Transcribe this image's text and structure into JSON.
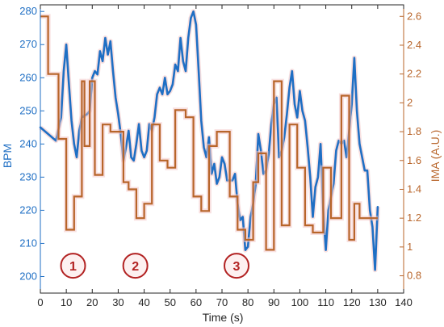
{
  "chart_data": {
    "type": "line",
    "xlabel": "Time (s)",
    "ylabel_left": "BPM",
    "ylabel_right": "IMA (A.U.)",
    "xlim": [
      0,
      140
    ],
    "xticks": [
      0,
      10,
      20,
      30,
      40,
      50,
      60,
      70,
      80,
      90,
      100,
      110,
      120,
      130,
      140
    ],
    "ylim_left": [
      195,
      282
    ],
    "yticks_left": [
      200,
      210,
      220,
      230,
      240,
      250,
      260,
      270,
      280
    ],
    "ylim_right": [
      0.68,
      2.68
    ],
    "yticks_right": [
      0.8,
      1,
      1.2,
      1.4,
      1.6,
      1.8,
      2,
      2.2,
      2.4,
      2.6
    ],
    "colors": {
      "bpm": "#1f6fc4",
      "ima": "#b8652a",
      "marker": "#b22222"
    },
    "series": [
      {
        "axis": "left",
        "style": "line",
        "x": [
          0,
          6,
          8,
          9,
          10,
          11,
          12,
          13,
          14,
          15,
          16,
          18,
          19,
          20,
          21,
          22,
          23,
          24,
          25,
          26,
          27,
          28,
          29,
          30,
          31,
          32,
          33,
          34,
          35,
          36,
          37,
          38,
          39,
          40,
          41,
          42,
          43,
          44,
          45,
          46,
          47,
          48,
          49,
          50,
          51,
          52,
          53,
          54,
          55,
          56,
          57,
          58,
          59,
          60,
          61,
          62,
          63,
          64,
          65,
          66,
          67,
          68,
          69,
          70,
          71,
          72,
          73,
          74,
          75,
          76,
          77,
          78,
          79,
          80,
          81,
          82,
          83,
          84,
          85,
          86,
          87,
          88,
          89,
          90,
          91,
          92,
          93,
          94,
          95,
          96,
          97,
          98,
          99,
          100,
          101,
          102,
          103,
          104,
          105,
          106,
          107,
          108,
          109,
          110,
          111,
          112,
          113,
          114,
          115,
          116,
          117,
          118,
          119,
          120,
          121,
          122,
          123,
          124,
          125,
          126,
          127,
          128,
          129,
          130
        ],
        "y": [
          245,
          241,
          248,
          262,
          270,
          258,
          247,
          240,
          236,
          244,
          248,
          249,
          250,
          260,
          262,
          261,
          268,
          265,
          272,
          267,
          271,
          262,
          254,
          249,
          243,
          235,
          239,
          244,
          236,
          235,
          240,
          246,
          238,
          236,
          238,
          246,
          244,
          248,
          255,
          257,
          255,
          260,
          255,
          256,
          258,
          264,
          262,
          272,
          265,
          262,
          272,
          278,
          280,
          276,
          262,
          247,
          239,
          236,
          242,
          231,
          234,
          228,
          230,
          236,
          234,
          229,
          229,
          229,
          231,
          222,
          217,
          218,
          208,
          209,
          218,
          222,
          228,
          243,
          238,
          231,
          232,
          237,
          246,
          252,
          254,
          236,
          238,
          242,
          249,
          257,
          262,
          252,
          248,
          256,
          250,
          247,
          239,
          230,
          218,
          227,
          230,
          240,
          220,
          208,
          220,
          224,
          228,
          238,
          241,
          240,
          241,
          236,
          244,
          252,
          266,
          250,
          240,
          236,
          232,
          232,
          220,
          215,
          202,
          221
        ]
      },
      {
        "axis": "right",
        "style": "step",
        "x": [
          0,
          3,
          5,
          7,
          10,
          13,
          16,
          17,
          19,
          21,
          24,
          27,
          30,
          32,
          34,
          37,
          40,
          43,
          46,
          49,
          52,
          56,
          59,
          62,
          65,
          68,
          70,
          73,
          76,
          79,
          82,
          84,
          87,
          90,
          93,
          96,
          99,
          102,
          105,
          109,
          112,
          116,
          119,
          121,
          123,
          125,
          127,
          130
        ],
        "y": [
          2.6,
          2.2,
          2.2,
          1.75,
          1.12,
          1.35,
          2.15,
          1.7,
          2.15,
          1.5,
          1.85,
          1.8,
          1.8,
          1.45,
          1.4,
          1.2,
          1.3,
          1.85,
          1.6,
          1.55,
          1.95,
          1.9,
          1.35,
          1.25,
          1.7,
          1.8,
          1.8,
          1.35,
          1.12,
          1.05,
          1.45,
          1.65,
          0.98,
          2.15,
          1.15,
          1.85,
          1.55,
          1.15,
          1.1,
          1.55,
          1.2,
          2.05,
          1.05,
          1.3,
          1.2,
          1.2,
          1.2,
          1.2
        ]
      }
    ],
    "markers": [
      {
        "label": "1",
        "x": 7,
        "y": 204
      },
      {
        "label": "2",
        "x": 31,
        "y": 204
      },
      {
        "label": "3",
        "x": 70,
        "y": 204
      }
    ]
  }
}
